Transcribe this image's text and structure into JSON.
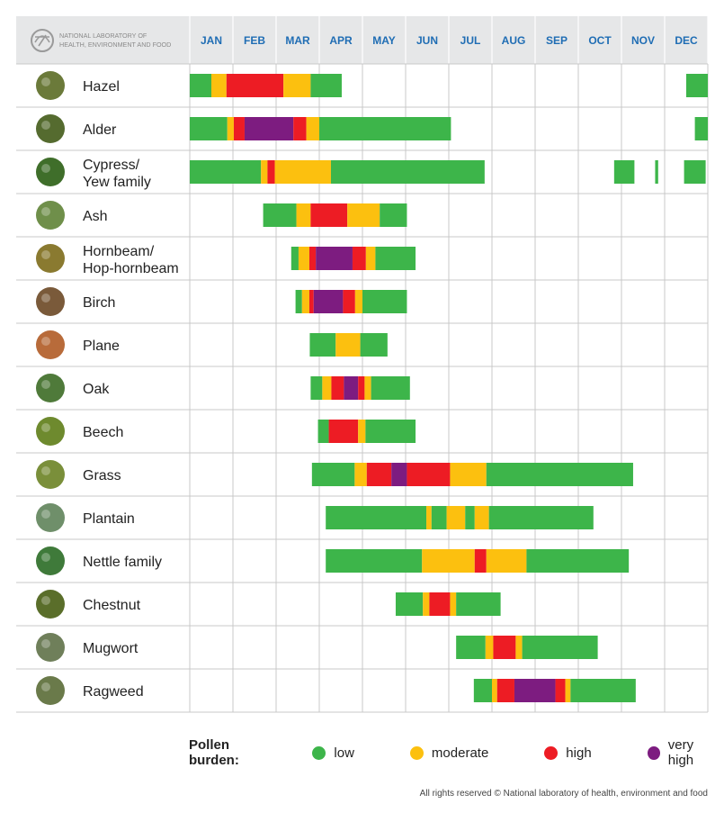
{
  "org_logo_text": [
    "NATIONAL LABORATORY OF",
    "HEALTH, ENVIRONMENT AND FOOD"
  ],
  "legend": {
    "title": "Pollen burden:",
    "items": [
      {
        "key": "low",
        "label": "low",
        "color": "#3db54a"
      },
      {
        "key": "moderate",
        "label": "moderate",
        "color": "#fcc00f"
      },
      {
        "key": "high",
        "label": "high",
        "color": "#ed1c24"
      },
      {
        "key": "veryhigh",
        "label": "very high",
        "color": "#7d1c80"
      }
    ]
  },
  "footer": "All rights reserved © National laboratory of health, environment and food",
  "chart_data": {
    "type": "gantt",
    "x_unit": "month (0 = start of January, 12 = end of December)",
    "months": [
      "JAN",
      "FEB",
      "MAR",
      "APR",
      "MAY",
      "JUN",
      "JUL",
      "AUG",
      "SEP",
      "OCT",
      "NOV",
      "DEC"
    ],
    "colors": {
      "low": "#3db54a",
      "moderate": "#fcc00f",
      "high": "#ed1c24",
      "veryhigh": "#7d1c80"
    },
    "plants": [
      {
        "name": [
          "Hazel"
        ],
        "icon": "hazel-catkin",
        "segments": [
          {
            "from": 0,
            "to": 0.5,
            "level": "low"
          },
          {
            "from": 0.5,
            "to": 0.85,
            "level": "moderate"
          },
          {
            "from": 0.85,
            "to": 2.17,
            "level": "high"
          },
          {
            "from": 2.17,
            "to": 2.8,
            "level": "moderate"
          },
          {
            "from": 2.8,
            "to": 3.52,
            "level": "low"
          },
          {
            "from": 11.5,
            "to": 12.0,
            "level": "low"
          }
        ]
      },
      {
        "name": [
          "Alder"
        ],
        "icon": "alder-catkin",
        "segments": [
          {
            "from": 0,
            "to": 0.87,
            "level": "low"
          },
          {
            "from": 0.87,
            "to": 1.02,
            "level": "moderate"
          },
          {
            "from": 1.02,
            "to": 1.27,
            "level": "high"
          },
          {
            "from": 1.27,
            "to": 2.4,
            "level": "veryhigh"
          },
          {
            "from": 2.4,
            "to": 2.7,
            "level": "high"
          },
          {
            "from": 2.7,
            "to": 3.0,
            "level": "moderate"
          },
          {
            "from": 3.0,
            "to": 6.05,
            "level": "low"
          },
          {
            "from": 11.7,
            "to": 12.0,
            "level": "low"
          }
        ]
      },
      {
        "name": [
          "Cypress/",
          "Yew family"
        ],
        "icon": "cypress-leaves",
        "segments": [
          {
            "from": 0,
            "to": 1.65,
            "level": "low"
          },
          {
            "from": 1.65,
            "to": 1.8,
            "level": "moderate"
          },
          {
            "from": 1.8,
            "to": 1.97,
            "level": "high"
          },
          {
            "from": 1.97,
            "to": 3.27,
            "level": "moderate"
          },
          {
            "from": 3.27,
            "to": 6.83,
            "level": "low"
          },
          {
            "from": 9.83,
            "to": 10.3,
            "level": "low"
          },
          {
            "from": 10.78,
            "to": 10.85,
            "level": "low"
          },
          {
            "from": 11.45,
            "to": 11.95,
            "level": "low"
          }
        ]
      },
      {
        "name": [
          "Ash"
        ],
        "icon": "ash-leaves",
        "segments": [
          {
            "from": 1.7,
            "to": 2.47,
            "level": "low"
          },
          {
            "from": 2.47,
            "to": 2.8,
            "level": "moderate"
          },
          {
            "from": 2.8,
            "to": 3.65,
            "level": "high"
          },
          {
            "from": 3.65,
            "to": 4.4,
            "level": "moderate"
          },
          {
            "from": 4.4,
            "to": 5.03,
            "level": "low"
          }
        ]
      },
      {
        "name": [
          "Hornbeam/",
          "Hop-hornbeam"
        ],
        "icon": "hornbeam-catkin",
        "segments": [
          {
            "from": 2.35,
            "to": 2.52,
            "level": "low"
          },
          {
            "from": 2.52,
            "to": 2.77,
            "level": "moderate"
          },
          {
            "from": 2.77,
            "to": 2.92,
            "level": "high"
          },
          {
            "from": 2.92,
            "to": 3.77,
            "level": "veryhigh"
          },
          {
            "from": 3.77,
            "to": 4.08,
            "level": "high"
          },
          {
            "from": 4.08,
            "to": 4.3,
            "level": "moderate"
          },
          {
            "from": 4.3,
            "to": 5.23,
            "level": "low"
          }
        ]
      },
      {
        "name": [
          "Birch"
        ],
        "icon": "birch-catkin",
        "segments": [
          {
            "from": 2.45,
            "to": 2.6,
            "level": "low"
          },
          {
            "from": 2.6,
            "to": 2.77,
            "level": "moderate"
          },
          {
            "from": 2.77,
            "to": 2.87,
            "level": "high"
          },
          {
            "from": 2.87,
            "to": 3.55,
            "level": "veryhigh"
          },
          {
            "from": 3.55,
            "to": 3.83,
            "level": "high"
          },
          {
            "from": 3.83,
            "to": 4.0,
            "level": "moderate"
          },
          {
            "from": 4.0,
            "to": 5.03,
            "level": "low"
          }
        ]
      },
      {
        "name": [
          "Plane"
        ],
        "icon": "plane-seedball",
        "segments": [
          {
            "from": 2.78,
            "to": 3.38,
            "level": "low"
          },
          {
            "from": 3.38,
            "to": 3.95,
            "level": "moderate"
          },
          {
            "from": 3.95,
            "to": 4.58,
            "level": "low"
          }
        ]
      },
      {
        "name": [
          "Oak"
        ],
        "icon": "oak-leaves",
        "segments": [
          {
            "from": 2.8,
            "to": 3.07,
            "level": "low"
          },
          {
            "from": 3.07,
            "to": 3.28,
            "level": "moderate"
          },
          {
            "from": 3.28,
            "to": 3.57,
            "level": "high"
          },
          {
            "from": 3.57,
            "to": 3.9,
            "level": "veryhigh"
          },
          {
            "from": 3.9,
            "to": 4.05,
            "level": "high"
          },
          {
            "from": 4.05,
            "to": 4.2,
            "level": "moderate"
          },
          {
            "from": 4.2,
            "to": 5.1,
            "level": "low"
          }
        ]
      },
      {
        "name": [
          "Beech"
        ],
        "icon": "beech-catkin",
        "segments": [
          {
            "from": 2.97,
            "to": 3.22,
            "level": "low"
          },
          {
            "from": 3.22,
            "to": 3.9,
            "level": "high"
          },
          {
            "from": 3.9,
            "to": 4.07,
            "level": "moderate"
          },
          {
            "from": 4.07,
            "to": 5.23,
            "level": "low"
          }
        ]
      },
      {
        "name": [
          "Grass"
        ],
        "icon": "grass-flower",
        "segments": [
          {
            "from": 2.83,
            "to": 3.82,
            "level": "low"
          },
          {
            "from": 3.82,
            "to": 4.1,
            "level": "moderate"
          },
          {
            "from": 4.1,
            "to": 4.67,
            "level": "high"
          },
          {
            "from": 4.67,
            "to": 5.03,
            "level": "veryhigh"
          },
          {
            "from": 5.03,
            "to": 6.03,
            "level": "high"
          },
          {
            "from": 6.03,
            "to": 6.87,
            "level": "moderate"
          },
          {
            "from": 6.87,
            "to": 10.27,
            "level": "low"
          }
        ]
      },
      {
        "name": [
          "Plantain"
        ],
        "icon": "plantain-spike",
        "segments": [
          {
            "from": 3.15,
            "to": 5.48,
            "level": "low"
          },
          {
            "from": 5.48,
            "to": 5.6,
            "level": "moderate"
          },
          {
            "from": 5.6,
            "to": 5.95,
            "level": "low"
          },
          {
            "from": 5.95,
            "to": 6.38,
            "level": "moderate"
          },
          {
            "from": 6.38,
            "to": 6.6,
            "level": "low"
          },
          {
            "from": 6.6,
            "to": 6.93,
            "level": "moderate"
          },
          {
            "from": 6.93,
            "to": 9.35,
            "level": "low"
          }
        ]
      },
      {
        "name": [
          "Nettle family"
        ],
        "icon": "nettle-leaves",
        "segments": [
          {
            "from": 3.15,
            "to": 5.38,
            "level": "low"
          },
          {
            "from": 5.38,
            "to": 6.6,
            "level": "moderate"
          },
          {
            "from": 6.6,
            "to": 6.87,
            "level": "high"
          },
          {
            "from": 6.87,
            "to": 7.8,
            "level": "moderate"
          },
          {
            "from": 7.8,
            "to": 10.17,
            "level": "low"
          }
        ]
      },
      {
        "name": [
          "Chestnut"
        ],
        "icon": "chestnut-flower",
        "segments": [
          {
            "from": 4.77,
            "to": 5.4,
            "level": "low"
          },
          {
            "from": 5.4,
            "to": 5.55,
            "level": "moderate"
          },
          {
            "from": 5.55,
            "to": 6.03,
            "level": "high"
          },
          {
            "from": 6.03,
            "to": 6.17,
            "level": "moderate"
          },
          {
            "from": 6.17,
            "to": 7.2,
            "level": "low"
          }
        ]
      },
      {
        "name": [
          "Mugwort"
        ],
        "icon": "mugwort-plant",
        "segments": [
          {
            "from": 6.17,
            "to": 6.85,
            "level": "low"
          },
          {
            "from": 6.85,
            "to": 7.03,
            "level": "moderate"
          },
          {
            "from": 7.03,
            "to": 7.55,
            "level": "high"
          },
          {
            "from": 7.55,
            "to": 7.7,
            "level": "moderate"
          },
          {
            "from": 7.7,
            "to": 9.45,
            "level": "low"
          }
        ]
      },
      {
        "name": [
          "Ragweed"
        ],
        "icon": "ragweed-plant",
        "segments": [
          {
            "from": 6.58,
            "to": 7.0,
            "level": "low"
          },
          {
            "from": 7.0,
            "to": 7.12,
            "level": "moderate"
          },
          {
            "from": 7.12,
            "to": 7.52,
            "level": "high"
          },
          {
            "from": 7.52,
            "to": 8.47,
            "level": "veryhigh"
          },
          {
            "from": 8.47,
            "to": 8.7,
            "level": "high"
          },
          {
            "from": 8.7,
            "to": 8.82,
            "level": "moderate"
          },
          {
            "from": 8.82,
            "to": 10.33,
            "level": "low"
          }
        ]
      }
    ]
  }
}
